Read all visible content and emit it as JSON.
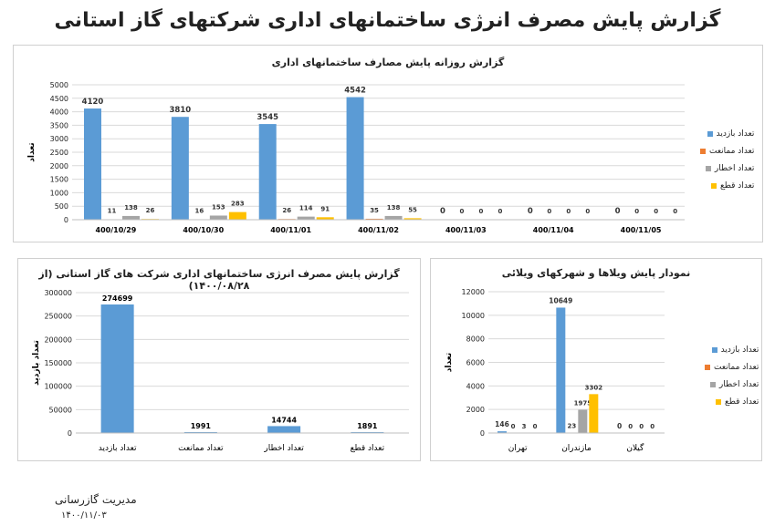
{
  "page": {
    "title": "گزارش پایش مصرف انرژی ساختمانهای اداری شرکتهای گاز استانی",
    "footer_org": "مدیریت گازرسانی",
    "footer_date": "۱۴۰۰/۱۱/۰۳"
  },
  "colors": {
    "blue": "#5b9bd5",
    "orange": "#ed7d31",
    "gray": "#a5a5a5",
    "yellow": "#ffc000"
  },
  "legend_labels": [
    "تعداد بازدید",
    "تعداد ممانعت",
    "تعداد اخطار",
    "تعداد قطع"
  ],
  "chart_data": [
    {
      "id": "daily",
      "type": "bar",
      "title": "گزارش روزانه پایش مصارف ساختمانهای اداری",
      "ylabel": "تعداد",
      "ylim": [
        0,
        5000
      ],
      "yticks": [
        0,
        500,
        1000,
        1500,
        2000,
        2500,
        3000,
        3500,
        4000,
        4500,
        5000
      ],
      "categories": [
        "400/10/29",
        "400/10/30",
        "400/11/01",
        "400/11/02",
        "400/11/03",
        "400/11/04",
        "400/11/05"
      ],
      "series": [
        {
          "name": "تعداد بازدید",
          "values": [
            4120,
            3810,
            3545,
            4542,
            0,
            0,
            0
          ]
        },
        {
          "name": "تعداد ممانعت",
          "values": [
            11,
            16,
            26,
            35,
            0,
            0,
            0
          ]
        },
        {
          "name": "تعداد اخطار",
          "values": [
            138,
            153,
            114,
            138,
            0,
            0,
            0
          ]
        },
        {
          "name": "تعداد قطع",
          "values": [
            26,
            283,
            91,
            55,
            0,
            0,
            0
          ]
        }
      ],
      "grid": true,
      "legend_position": "right"
    },
    {
      "id": "total",
      "type": "bar",
      "title": "گزارش پایش مصرف انرژی ساختمانهای اداری شرکت های گاز استانی (از ۱۴۰۰/۰۸/۲۸)",
      "ylabel": "تعداد بازدید",
      "ylim": [
        0,
        300000
      ],
      "yticks": [
        0,
        50000,
        100000,
        150000,
        200000,
        250000,
        300000
      ],
      "categories": [
        "تعداد بازدید",
        "تعداد ممانعت",
        "تعداد اخطار",
        "تعداد قطع"
      ],
      "values": [
        274699,
        1991,
        14744,
        1891
      ],
      "grid": true
    },
    {
      "id": "villa",
      "type": "bar",
      "title": "نمودار پایش ویلاها و شهرکهای ویلائی",
      "ylabel": "تعداد",
      "ylim": [
        0,
        12000
      ],
      "yticks": [
        0,
        2000,
        4000,
        6000,
        8000,
        10000,
        12000
      ],
      "categories": [
        "تهران",
        "مازندران",
        "گیلان"
      ],
      "series": [
        {
          "name": "تعداد بازدید",
          "values": [
            146,
            10649,
            0
          ]
        },
        {
          "name": "تعداد ممانعت",
          "values": [
            0,
            23,
            0
          ]
        },
        {
          "name": "تعداد اخطار",
          "values": [
            3,
            1975,
            0
          ]
        },
        {
          "name": "تعداد قطع",
          "values": [
            0,
            3302,
            0
          ]
        }
      ],
      "grid": true,
      "legend_position": "right"
    }
  ]
}
